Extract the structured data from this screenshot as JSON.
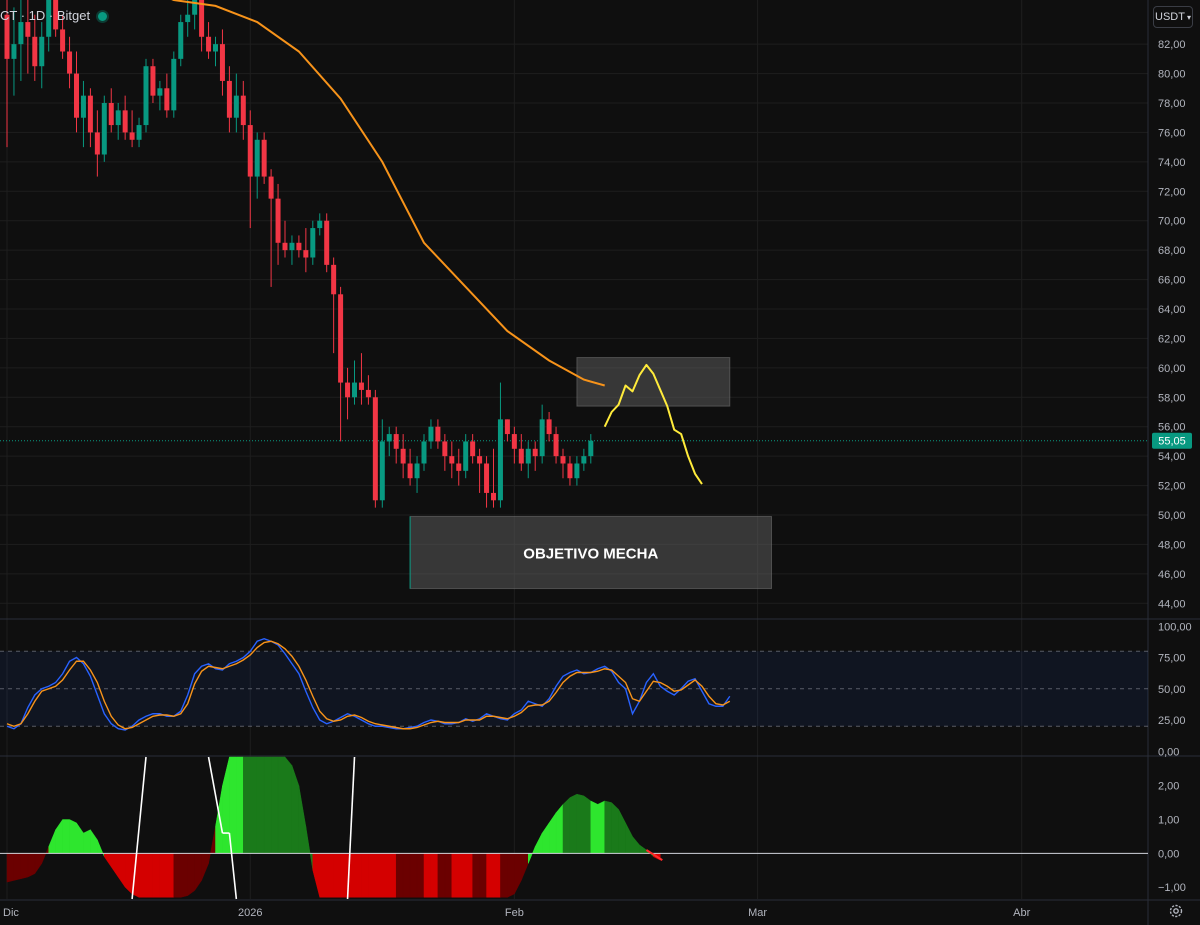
{
  "header": {
    "symbol_text": "CT · 1D · Bitget",
    "currency_label": "USDT",
    "currency_chevron": "▾"
  },
  "colors": {
    "background": "#0f0f0f",
    "grid": "#1e1e1e",
    "bull": "#089981",
    "bear": "#f23645",
    "ma_line": "#f7931a",
    "projection": "#ffeb3b",
    "stoch_k": "#2962ff",
    "stoch_d": "#f7931a",
    "osc_bright_green": "#2ee62e",
    "osc_dark_green": "#1a7a1a",
    "osc_bright_red": "#d40000",
    "osc_dark_red": "#6b0000",
    "price_tag": "#089981"
  },
  "icons": {
    "settings": "gear-icon"
  },
  "chart_data": [
    {
      "type": "candlestick",
      "title": "",
      "y_axis_ticks": [
        "82,00",
        "80,00",
        "78,00",
        "76,00",
        "74,00",
        "72,00",
        "70,00",
        "68,00",
        "66,00",
        "64,00",
        "62,00",
        "60,00",
        "58,00",
        "56,00",
        "54,00",
        "52,00",
        "50,00",
        "48,00",
        "46,00",
        "44,00"
      ],
      "ylim": [
        43,
        85
      ],
      "x_ticks": [
        "Dic",
        "2026",
        "Feb",
        "Mar",
        "Abr"
      ],
      "last_price": "55,05",
      "candles": [
        {
          "o": 84.0,
          "h": 86.0,
          "l": 75.0,
          "c": 81.0
        },
        {
          "o": 81.0,
          "h": 84.5,
          "l": 78.5,
          "c": 82.0
        },
        {
          "o": 82.0,
          "h": 85.0,
          "l": 79.5,
          "c": 83.5
        },
        {
          "o": 83.5,
          "h": 85.5,
          "l": 80.0,
          "c": 82.5
        },
        {
          "o": 82.5,
          "h": 84.0,
          "l": 79.5,
          "c": 80.5
        },
        {
          "o": 80.5,
          "h": 83.5,
          "l": 79.0,
          "c": 82.5
        },
        {
          "o": 82.5,
          "h": 85.5,
          "l": 81.5,
          "c": 85.0
        },
        {
          "o": 85.0,
          "h": 86.0,
          "l": 82.5,
          "c": 83.0
        },
        {
          "o": 83.0,
          "h": 84.0,
          "l": 81.0,
          "c": 81.5
        },
        {
          "o": 81.5,
          "h": 82.5,
          "l": 79.0,
          "c": 80.0
        },
        {
          "o": 80.0,
          "h": 81.5,
          "l": 76.0,
          "c": 77.0
        },
        {
          "o": 77.0,
          "h": 79.5,
          "l": 75.0,
          "c": 78.5
        },
        {
          "o": 78.5,
          "h": 79.0,
          "l": 75.0,
          "c": 76.0
        },
        {
          "o": 76.0,
          "h": 77.5,
          "l": 73.0,
          "c": 74.5
        },
        {
          "o": 74.5,
          "h": 78.5,
          "l": 74.0,
          "c": 78.0
        },
        {
          "o": 78.0,
          "h": 79.0,
          "l": 76.0,
          "c": 76.5
        },
        {
          "o": 76.5,
          "h": 78.0,
          "l": 75.5,
          "c": 77.5
        },
        {
          "o": 77.5,
          "h": 78.5,
          "l": 75.5,
          "c": 76.0
        },
        {
          "o": 76.0,
          "h": 77.5,
          "l": 75.0,
          "c": 75.5
        },
        {
          "o": 75.5,
          "h": 77.0,
          "l": 75.0,
          "c": 76.5
        },
        {
          "o": 76.5,
          "h": 81.0,
          "l": 76.0,
          "c": 80.5
        },
        {
          "o": 80.5,
          "h": 81.0,
          "l": 78.0,
          "c": 78.5
        },
        {
          "o": 78.5,
          "h": 79.5,
          "l": 77.5,
          "c": 79.0
        },
        {
          "o": 79.0,
          "h": 80.0,
          "l": 77.0,
          "c": 77.5
        },
        {
          "o": 77.5,
          "h": 81.5,
          "l": 77.0,
          "c": 81.0
        },
        {
          "o": 81.0,
          "h": 84.0,
          "l": 80.5,
          "c": 83.5
        },
        {
          "o": 83.5,
          "h": 85.0,
          "l": 82.5,
          "c": 84.0
        },
        {
          "o": 84.0,
          "h": 86.0,
          "l": 83.0,
          "c": 85.5
        },
        {
          "o": 85.5,
          "h": 86.0,
          "l": 81.5,
          "c": 82.5
        },
        {
          "o": 82.5,
          "h": 83.5,
          "l": 81.0,
          "c": 81.5
        },
        {
          "o": 81.5,
          "h": 82.5,
          "l": 80.5,
          "c": 82.0
        },
        {
          "o": 82.0,
          "h": 83.0,
          "l": 78.5,
          "c": 79.5
        },
        {
          "o": 79.5,
          "h": 80.5,
          "l": 76.0,
          "c": 77.0
        },
        {
          "o": 77.0,
          "h": 80.0,
          "l": 76.0,
          "c": 78.5
        },
        {
          "o": 78.5,
          "h": 79.5,
          "l": 75.5,
          "c": 76.5
        },
        {
          "o": 76.5,
          "h": 77.5,
          "l": 69.5,
          "c": 73.0
        },
        {
          "o": 73.0,
          "h": 76.0,
          "l": 71.5,
          "c": 75.5
        },
        {
          "o": 75.5,
          "h": 76.0,
          "l": 72.5,
          "c": 73.0
        },
        {
          "o": 73.0,
          "h": 73.5,
          "l": 65.5,
          "c": 71.5
        },
        {
          "o": 71.5,
          "h": 72.5,
          "l": 67.0,
          "c": 68.5
        },
        {
          "o": 68.5,
          "h": 70.0,
          "l": 67.5,
          "c": 68.0
        },
        {
          "o": 68.0,
          "h": 69.0,
          "l": 67.0,
          "c": 68.5
        },
        {
          "o": 68.5,
          "h": 69.0,
          "l": 67.5,
          "c": 68.0
        },
        {
          "o": 68.0,
          "h": 69.5,
          "l": 66.5,
          "c": 67.5
        },
        {
          "o": 67.5,
          "h": 70.0,
          "l": 67.0,
          "c": 69.5
        },
        {
          "o": 69.5,
          "h": 70.5,
          "l": 69.0,
          "c": 70.0
        },
        {
          "o": 70.0,
          "h": 70.5,
          "l": 66.5,
          "c": 67.0
        },
        {
          "o": 67.0,
          "h": 67.5,
          "l": 61.0,
          "c": 65.0
        },
        {
          "o": 65.0,
          "h": 65.5,
          "l": 55.0,
          "c": 59.0
        },
        {
          "o": 59.0,
          "h": 60.0,
          "l": 56.5,
          "c": 58.0
        },
        {
          "o": 58.0,
          "h": 60.5,
          "l": 57.5,
          "c": 59.0
        },
        {
          "o": 59.0,
          "h": 61.0,
          "l": 57.5,
          "c": 58.5
        },
        {
          "o": 58.5,
          "h": 59.5,
          "l": 57.5,
          "c": 58.0
        },
        {
          "o": 58.0,
          "h": 58.5,
          "l": 50.5,
          "c": 51.0
        },
        {
          "o": 51.0,
          "h": 56.5,
          "l": 50.5,
          "c": 55.0
        },
        {
          "o": 55.0,
          "h": 56.0,
          "l": 54.0,
          "c": 55.5
        },
        {
          "o": 55.5,
          "h": 56.0,
          "l": 53.5,
          "c": 54.5
        },
        {
          "o": 54.5,
          "h": 55.5,
          "l": 52.5,
          "c": 53.5
        },
        {
          "o": 53.5,
          "h": 54.5,
          "l": 52.0,
          "c": 52.5
        },
        {
          "o": 52.5,
          "h": 54.0,
          "l": 51.5,
          "c": 53.5
        },
        {
          "o": 53.5,
          "h": 55.5,
          "l": 53.0,
          "c": 55.0
        },
        {
          "o": 55.0,
          "h": 56.5,
          "l": 54.5,
          "c": 56.0
        },
        {
          "o": 56.0,
          "h": 56.5,
          "l": 54.5,
          "c": 55.0
        },
        {
          "o": 55.0,
          "h": 55.5,
          "l": 53.0,
          "c": 54.0
        },
        {
          "o": 54.0,
          "h": 55.0,
          "l": 52.5,
          "c": 53.5
        },
        {
          "o": 53.5,
          "h": 54.5,
          "l": 52.0,
          "c": 53.0
        },
        {
          "o": 53.0,
          "h": 55.5,
          "l": 52.5,
          "c": 55.0
        },
        {
          "o": 55.0,
          "h": 55.5,
          "l": 53.5,
          "c": 54.0
        },
        {
          "o": 54.0,
          "h": 54.5,
          "l": 51.5,
          "c": 53.5
        },
        {
          "o": 53.5,
          "h": 54.0,
          "l": 50.5,
          "c": 51.5
        },
        {
          "o": 51.5,
          "h": 54.5,
          "l": 50.5,
          "c": 51.0
        },
        {
          "o": 51.0,
          "h": 59.0,
          "l": 50.5,
          "c": 56.5
        },
        {
          "o": 56.5,
          "h": 56.5,
          "l": 55.0,
          "c": 55.5
        },
        {
          "o": 55.5,
          "h": 56.0,
          "l": 53.5,
          "c": 54.5
        },
        {
          "o": 54.5,
          "h": 55.5,
          "l": 53.0,
          "c": 53.5
        },
        {
          "o": 53.5,
          "h": 55.0,
          "l": 52.5,
          "c": 54.5
        },
        {
          "o": 54.5,
          "h": 55.0,
          "l": 53.0,
          "c": 54.0
        },
        {
          "o": 54.0,
          "h": 57.5,
          "l": 53.5,
          "c": 56.5
        },
        {
          "o": 56.5,
          "h": 57.0,
          "l": 55.0,
          "c": 55.5
        },
        {
          "o": 55.5,
          "h": 56.0,
          "l": 53.5,
          "c": 54.0
        },
        {
          "o": 54.0,
          "h": 54.5,
          "l": 52.5,
          "c": 53.5
        },
        {
          "o": 53.5,
          "h": 54.0,
          "l": 52.0,
          "c": 52.5
        },
        {
          "o": 52.5,
          "h": 54.0,
          "l": 52.0,
          "c": 53.5
        },
        {
          "o": 53.5,
          "h": 54.5,
          "l": 53.0,
          "c": 54.0
        },
        {
          "o": 54.0,
          "h": 55.5,
          "l": 53.5,
          "c": 55.05
        }
      ],
      "moving_average": [
        {
          "i": 0,
          "v": 89.0
        },
        {
          "i": 6,
          "v": 88.0
        },
        {
          "i": 12,
          "v": 87.2
        },
        {
          "i": 18,
          "v": 86.2
        },
        {
          "i": 24,
          "v": 85.0
        },
        {
          "i": 30,
          "v": 84.6
        },
        {
          "i": 36,
          "v": 83.5
        },
        {
          "i": 42,
          "v": 81.5
        },
        {
          "i": 48,
          "v": 78.3
        },
        {
          "i": 54,
          "v": 74.0
        },
        {
          "i": 60,
          "v": 68.5
        },
        {
          "i": 66,
          "v": 65.5
        },
        {
          "i": 72,
          "v": 62.5
        },
        {
          "i": 78,
          "v": 60.5
        },
        {
          "i": 83,
          "v": 59.2
        },
        {
          "i": 86,
          "v": 58.8
        }
      ],
      "projection_path": [
        {
          "i": 86,
          "v": 56.0
        },
        {
          "i": 87,
          "v": 57.0
        },
        {
          "i": 88,
          "v": 57.5
        },
        {
          "i": 89,
          "v": 58.8
        },
        {
          "i": 90,
          "v": 58.4
        },
        {
          "i": 91,
          "v": 59.5
        },
        {
          "i": 92,
          "v": 60.2
        },
        {
          "i": 93,
          "v": 59.6
        },
        {
          "i": 94,
          "v": 58.5
        },
        {
          "i": 95,
          "v": 57.4
        },
        {
          "i": 96,
          "v": 55.8
        },
        {
          "i": 97,
          "v": 55.5
        },
        {
          "i": 98,
          "v": 54.0
        },
        {
          "i": 99,
          "v": 52.8
        },
        {
          "i": 100,
          "v": 52.1
        }
      ],
      "zones": [
        {
          "label": "",
          "i_start": 82,
          "i_end": 104,
          "top": 60.7,
          "bottom": 57.4
        },
        {
          "label": "OBJETIVO MECHA",
          "i_start": 58,
          "i_end": 110,
          "top": 49.9,
          "bottom": 45.0
        }
      ]
    },
    {
      "type": "line",
      "title": "",
      "y_axis_ticks": [
        "100,00",
        "75,00",
        "50,00",
        "25,00",
        "0,00"
      ],
      "ylim": [
        0,
        100
      ],
      "band": [
        20,
        80
      ],
      "series": [
        {
          "values": [
            20,
            18,
            22,
            35,
            45,
            50,
            52,
            55,
            62,
            72,
            75,
            70,
            60,
            45,
            30,
            22,
            18,
            17,
            20,
            25,
            28,
            30,
            30,
            28,
            28,
            32,
            45,
            62,
            68,
            70,
            66,
            65,
            70,
            72,
            75,
            80,
            88,
            90,
            88,
            85,
            78,
            70,
            62,
            48,
            35,
            25,
            22,
            24,
            27,
            30,
            28,
            25,
            22,
            20,
            20,
            19,
            18,
            18,
            19,
            20,
            23,
            25,
            24,
            22,
            22,
            23,
            26,
            24,
            26,
            30,
            28,
            26,
            25,
            30,
            33,
            40,
            38,
            36,
            42,
            52,
            60,
            63,
            65,
            62,
            63,
            66,
            68,
            64,
            55,
            50,
            30,
            40,
            55,
            62,
            52,
            48,
            45,
            50,
            56,
            58,
            48,
            38,
            36,
            36,
            44
          ]
        },
        {
          "values": [
            22,
            20,
            22,
            30,
            40,
            48,
            50,
            52,
            57,
            65,
            72,
            72,
            65,
            55,
            40,
            28,
            21,
            18,
            19,
            22,
            25,
            28,
            29,
            29,
            28,
            30,
            38,
            54,
            64,
            68,
            67,
            66,
            68,
            70,
            73,
            77,
            83,
            87,
            88,
            86,
            82,
            76,
            68,
            57,
            44,
            32,
            26,
            24,
            25,
            28,
            29,
            27,
            24,
            22,
            21,
            20,
            19,
            18,
            18,
            19,
            21,
            23,
            24,
            23,
            23,
            23,
            25,
            25,
            25,
            28,
            28,
            27,
            26,
            28,
            31,
            36,
            37,
            37,
            40,
            47,
            55,
            60,
            63,
            63,
            63,
            64,
            66,
            65,
            60,
            55,
            42,
            40,
            48,
            56,
            55,
            52,
            48,
            49,
            53,
            57,
            52,
            44,
            38,
            37,
            40
          ]
        }
      ]
    },
    {
      "type": "area",
      "title": "",
      "y_axis_ticks": [
        "2,00",
        "1,00",
        "0,00",
        "−1,00"
      ],
      "ylim": [
        -1.35,
        2.85
      ],
      "values": [
        -0.85,
        -0.8,
        -0.75,
        -0.7,
        -0.6,
        -0.3,
        0.2,
        0.7,
        1.0,
        1.0,
        0.9,
        0.6,
        0.7,
        0.4,
        -0.1,
        -0.4,
        -0.7,
        -1.0,
        -1.2,
        -1.3,
        -1.3,
        -1.3,
        -1.3,
        -1.3,
        -1.3,
        -1.3,
        -1.25,
        -1.1,
        -0.8,
        -0.3,
        0.8,
        2.0,
        2.85,
        2.85,
        2.85,
        2.85,
        2.85,
        2.85,
        2.85,
        2.85,
        2.85,
        2.6,
        2.0,
        0.8,
        -0.5,
        -1.3,
        -1.3,
        -1.3,
        -1.3,
        -1.3,
        -1.3,
        -1.3,
        -1.3,
        -1.3,
        -1.3,
        -1.3,
        -1.3,
        -1.3,
        -1.3,
        -1.3,
        -1.3,
        -1.3,
        -1.3,
        -1.3,
        -1.3,
        -1.3,
        -1.3,
        -1.3,
        -1.3,
        -1.3,
        -1.3,
        -1.3,
        -1.3,
        -1.2,
        -0.8,
        -0.3,
        0.2,
        0.6,
        0.9,
        1.2,
        1.45,
        1.65,
        1.75,
        1.7,
        1.55,
        1.45,
        1.55,
        1.5,
        1.3,
        0.9,
        0.5,
        0.25,
        0.1,
        -0.1,
        -0.2
      ],
      "color_codes": [
        2,
        2,
        2,
        2,
        2,
        2,
        1,
        1,
        1,
        1,
        1,
        1,
        1,
        1,
        3,
        3,
        3,
        3,
        3,
        3,
        3,
        3,
        3,
        3,
        2,
        2,
        2,
        2,
        2,
        2,
        1,
        1,
        1,
        1,
        0,
        0,
        0,
        0,
        0,
        0,
        0,
        0,
        0,
        0,
        3,
        3,
        3,
        3,
        3,
        3,
        3,
        3,
        3,
        3,
        3,
        3,
        2,
        2,
        2,
        2,
        3,
        3,
        2,
        2,
        3,
        3,
        3,
        2,
        2,
        3,
        3,
        2,
        2,
        2,
        2,
        1,
        1,
        1,
        1,
        1,
        0,
        0,
        0,
        0,
        1,
        1,
        0,
        0,
        0,
        0,
        0,
        0,
        0,
        3,
        3
      ],
      "white_lines": [
        {
          "x0": 18,
          "y0": -1.35,
          "x1": 20,
          "y1": 2.85
        },
        {
          "x0": 29,
          "y0": 2.85,
          "x1": 31,
          "y1": 0.6
        },
        {
          "x0": 31,
          "y0": 0.6,
          "x1": 32,
          "y1": 0.6
        },
        {
          "x0": 32,
          "y0": 0.6,
          "x1": 33,
          "y1": -1.35
        },
        {
          "x0": 49,
          "y0": -1.35,
          "x1": 50,
          "y1": 2.85
        }
      ]
    }
  ]
}
